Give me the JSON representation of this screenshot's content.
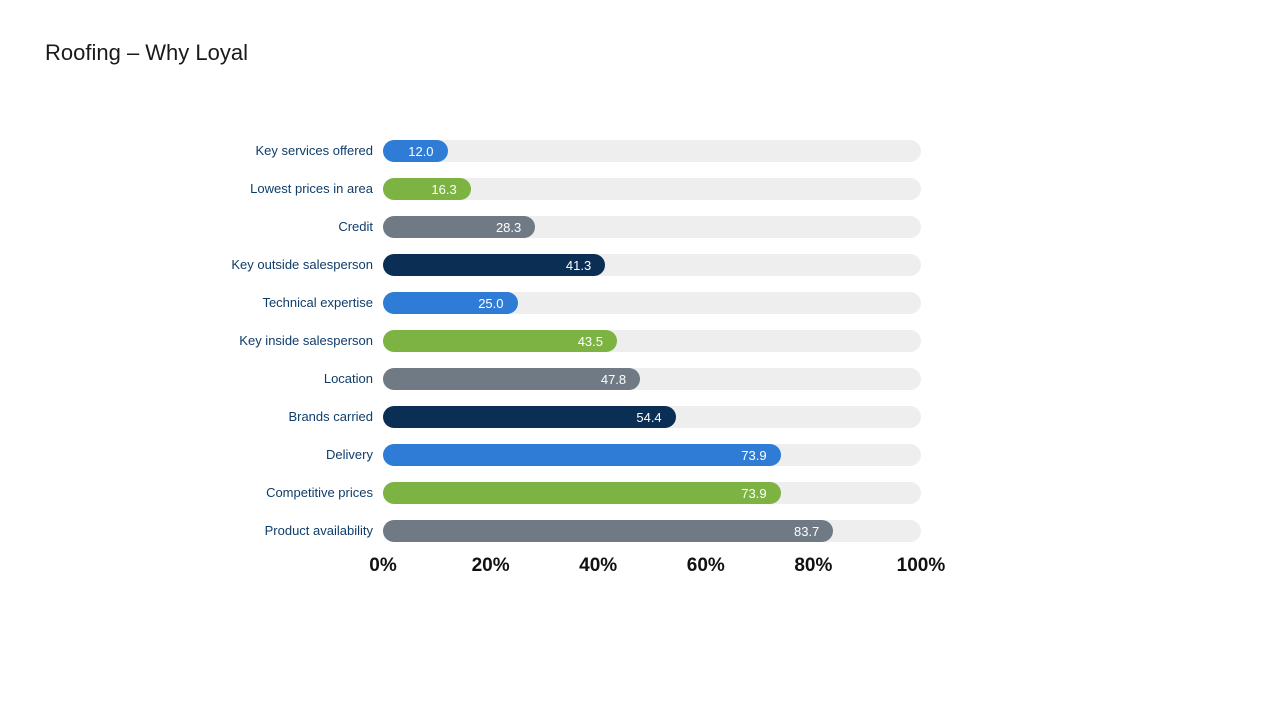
{
  "title": "Roofing – Why Loyal",
  "chart": {
    "type": "bar",
    "orientation": "horizontal",
    "xmin": 0,
    "xmax": 100,
    "xtick_step": 20,
    "xtick_suffix": "%",
    "track_color": "#eeeeee",
    "label_color": "#0f3d6b",
    "axis_color": "#111111",
    "value_color": "#ffffff",
    "label_fontsize": 13,
    "axis_fontsize": 19,
    "value_fontsize": 13,
    "bars": [
      {
        "label": "Key services offered",
        "value": 12.0,
        "color": "#2f7cd6"
      },
      {
        "label": "Lowest prices in area",
        "value": 16.3,
        "color": "#7cb342"
      },
      {
        "label": "Credit",
        "value": 28.3,
        "color": "#707a85"
      },
      {
        "label": "Key outside salesperson",
        "value": 41.3,
        "color": "#0b2e55"
      },
      {
        "label": "Technical expertise",
        "value": 25.0,
        "color": "#2f7cd6"
      },
      {
        "label": "Key inside salesperson",
        "value": 43.5,
        "color": "#7cb342"
      },
      {
        "label": "Location",
        "value": 47.8,
        "color": "#707a85"
      },
      {
        "label": "Brands carried",
        "value": 54.4,
        "color": "#0b2e55"
      },
      {
        "label": "Delivery",
        "value": 73.9,
        "color": "#2f7cd6"
      },
      {
        "label": "Competitive prices",
        "value": 73.9,
        "color": "#7cb342"
      },
      {
        "label": "Product availability",
        "value": 83.7,
        "color": "#707a85"
      }
    ]
  }
}
